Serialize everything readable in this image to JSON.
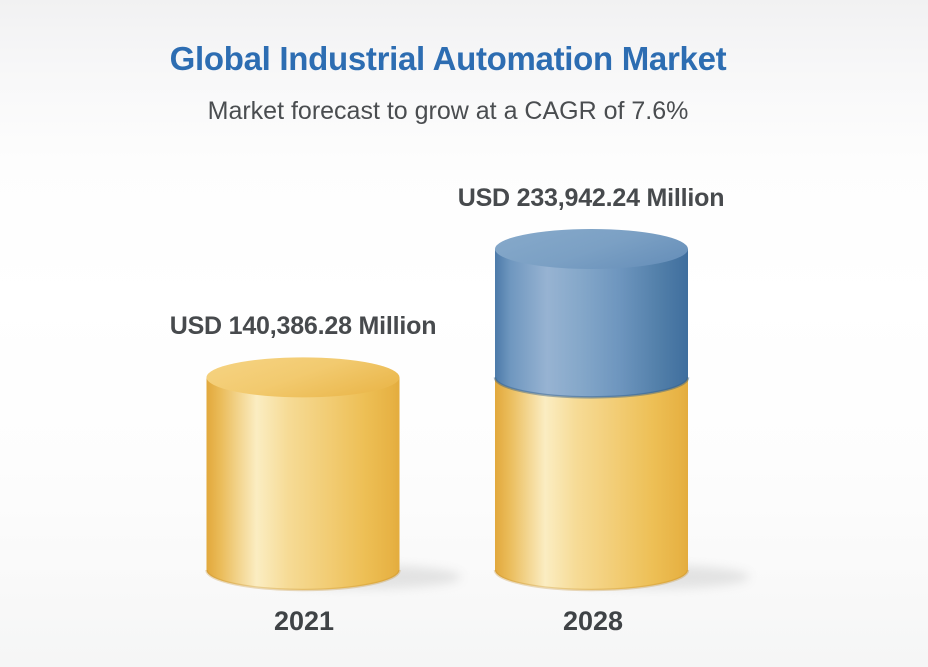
{
  "header": {
    "title": "Global Industrial Automation Market",
    "subtitle": "Market forecast to grow at a CAGR of 7.6%",
    "title_color": "#2d6db2"
  },
  "chart_data": {
    "type": "bar",
    "style": "3d-cylinder",
    "title": "Global Industrial Automation Market",
    "subtitle": "Market forecast to grow at a CAGR of 7.6%",
    "unit": "USD Million",
    "cagr_percent": 7.6,
    "categories": [
      "2021",
      "2028"
    ],
    "values": [
      140386.28,
      233942.24
    ],
    "value_labels": [
      "USD 140,386.28 Million",
      "USD 233,942.24 Million"
    ],
    "stacking_note": "2028 bar drawn as yellow base equal to 2021 value plus blue increment segment on top",
    "segment_colors": {
      "base_yellow": "#F2C96E",
      "increment_blue": "#6E96BE"
    },
    "ylim": [
      0,
      233942.24
    ],
    "grid": false,
    "legend": false,
    "xlabel": "",
    "ylabel": ""
  }
}
